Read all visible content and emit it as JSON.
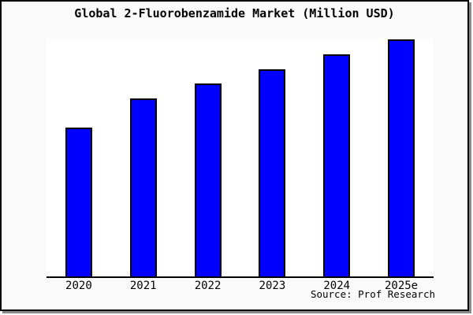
{
  "colors": {
    "background": "#fafafa",
    "plot_background": "#ffffff",
    "bar_fill": "#0000ff",
    "bar_border": "#000000",
    "axis": "#000000",
    "text": "#000000"
  },
  "chart_data": {
    "type": "bar",
    "title": "Global 2-Fluorobenzamide Market (Million USD)",
    "categories": [
      "2020",
      "2021",
      "2022",
      "2023",
      "2024",
      "2025e"
    ],
    "values": [
      62.8,
      75.1,
      81.4,
      87.4,
      93.7,
      100
    ],
    "values_unit": "relative height, 2025e = 100 (no y-axis tick labels shown)",
    "xlabel": "",
    "ylabel": "",
    "ylim": [
      0,
      100.4
    ],
    "grid": false,
    "legend": false,
    "y_axis_shown": false,
    "source": "Source: Prof Research",
    "bar_color": "#0000ff"
  }
}
